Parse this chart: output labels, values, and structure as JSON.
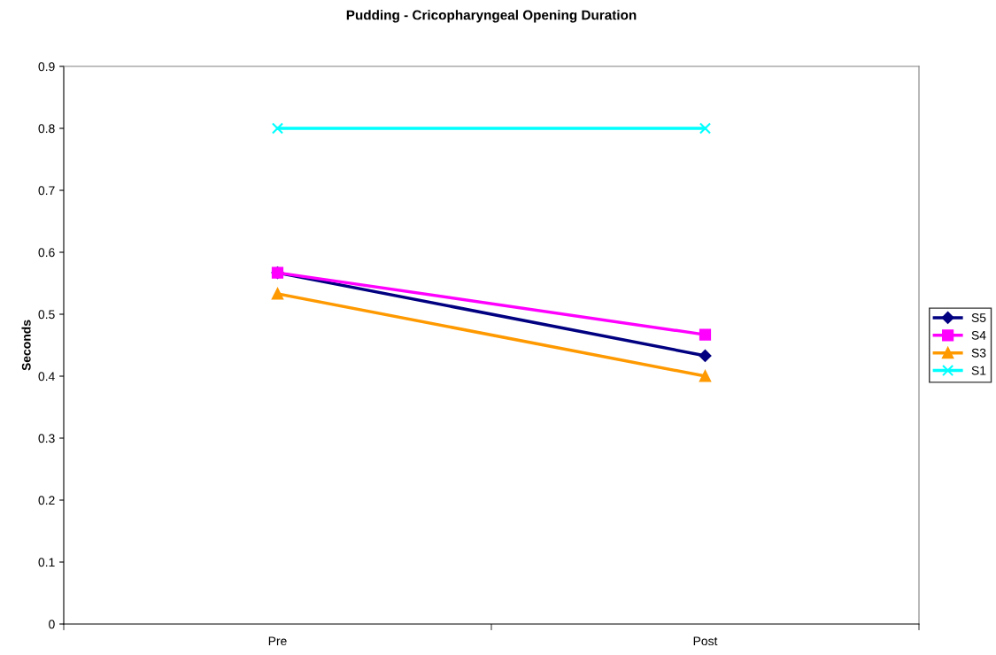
{
  "chart_data": {
    "type": "line",
    "title": "Pudding - Cricopharyngeal Opening Duration",
    "ylabel": "Seconds",
    "categories": [
      "Pre",
      "Post"
    ],
    "series": [
      {
        "name": "S5",
        "color": "#000080",
        "values": [
          0.567,
          0.433
        ],
        "marker": "diamond"
      },
      {
        "name": "S4",
        "color": "#ff00ff",
        "values": [
          0.567,
          0.467
        ],
        "marker": "square"
      },
      {
        "name": "S3",
        "color": "#ff9900",
        "values": [
          0.533,
          0.4
        ],
        "marker": "triangle"
      },
      {
        "name": "S1",
        "color": "#00ffff",
        "values": [
          0.8,
          0.8
        ],
        "marker": "cross"
      }
    ],
    "ylim": [
      0,
      0.9
    ],
    "yticks": [
      0,
      0.1,
      0.2,
      0.3,
      0.4,
      0.5,
      0.6,
      0.7,
      0.8,
      0.9
    ],
    "grid": false,
    "legend": "right",
    "line_style": "solid"
  }
}
